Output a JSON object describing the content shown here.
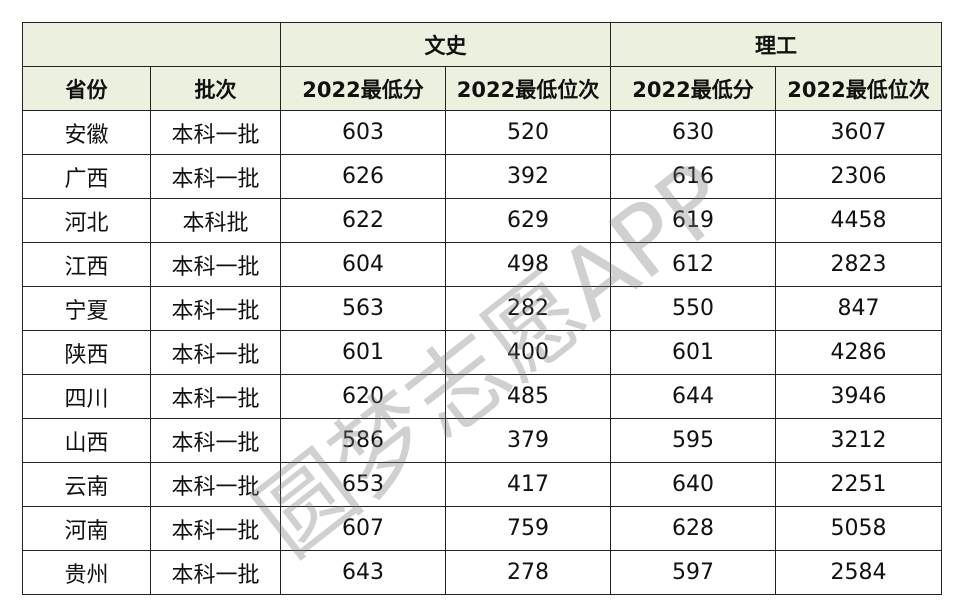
{
  "table": {
    "groups": [
      "文史",
      "理工"
    ],
    "columns": [
      "省份",
      "批次",
      "2022最低分",
      "2022最低位次",
      "2022最低分",
      "2022最低位次"
    ],
    "rows": [
      [
        "安徽",
        "本科一批",
        603,
        520,
        630,
        3607
      ],
      [
        "广西",
        "本科一批",
        626,
        392,
        616,
        2306
      ],
      [
        "河北",
        "本科批",
        622,
        629,
        619,
        4458
      ],
      [
        "江西",
        "本科一批",
        604,
        498,
        612,
        2823
      ],
      [
        "宁夏",
        "本科一批",
        563,
        282,
        550,
        847
      ],
      [
        "陕西",
        "本科一批",
        601,
        400,
        601,
        4286
      ],
      [
        "四川",
        "本科一批",
        620,
        485,
        644,
        3946
      ],
      [
        "山西",
        "本科一批",
        586,
        379,
        595,
        3212
      ],
      [
        "云南",
        "本科一批",
        653,
        417,
        640,
        2251
      ],
      [
        "河南",
        "本科一批",
        607,
        759,
        628,
        5058
      ],
      [
        "贵州",
        "本科一批",
        643,
        278,
        597,
        2584
      ]
    ]
  },
  "watermark": "圆梦志愿APP"
}
